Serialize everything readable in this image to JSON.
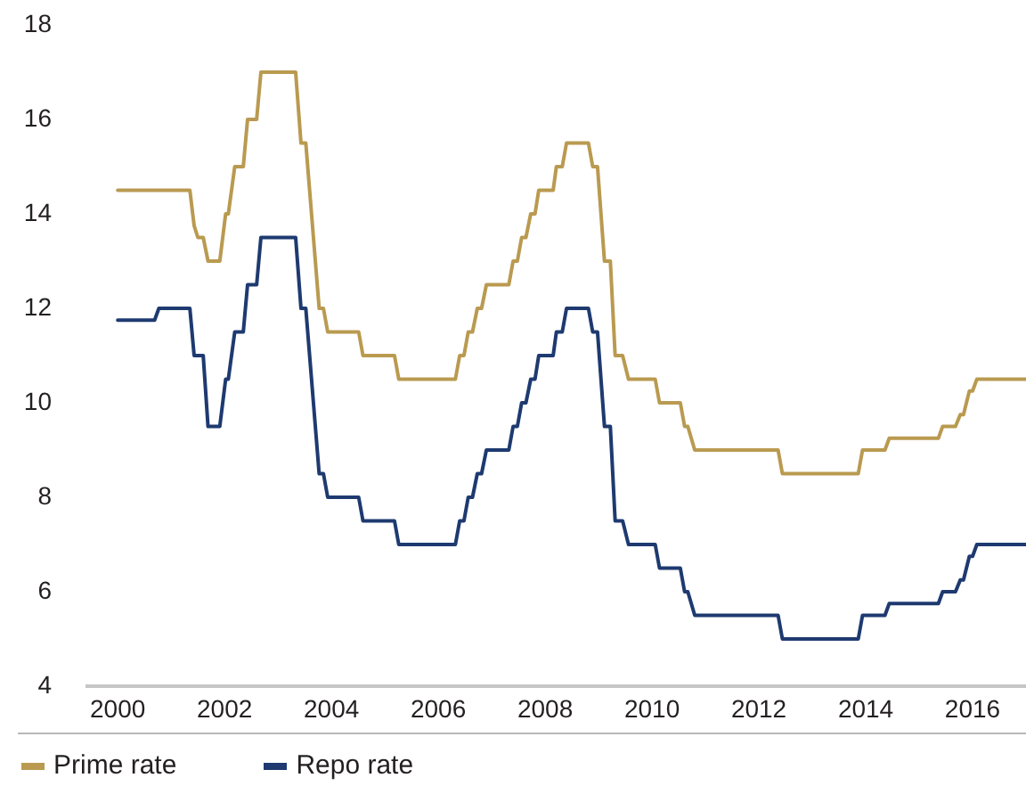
{
  "chart_data": {
    "type": "line",
    "xlim": [
      1999.43,
      2017
    ],
    "xticks": [
      2000,
      2002,
      2004,
      2006,
      2008,
      2010,
      2012,
      2014,
      2016
    ],
    "ylim": [
      4,
      18
    ],
    "yticks": [
      4,
      6,
      8,
      10,
      12,
      14,
      16,
      18
    ],
    "legend": "bottom left",
    "line_style": "solid",
    "series": [
      {
        "name": "Prime rate",
        "color": "#b99a50",
        "x": [
          2000,
          2001.35,
          2001.43,
          2001.5,
          2001.6,
          2001.69,
          2001.91,
          2002.02,
          2002.07,
          2002.19,
          2002.35,
          2002.43,
          2002.6,
          2002.68,
          2003.33,
          2003.43,
          2003.52,
          2003.77,
          2003.85,
          2003.93,
          2004.51,
          2004.59,
          2005.18,
          2005.26,
          2006.32,
          2006.4,
          2006.48,
          2006.56,
          2006.64,
          2006.73,
          2006.81,
          2006.9,
          2007.32,
          2007.4,
          2007.48,
          2007.56,
          2007.64,
          2007.73,
          2007.81,
          2007.88,
          2008.15,
          2008.21,
          2008.32,
          2008.4,
          2008.81,
          2008.89,
          2008.98,
          2009.11,
          2009.22,
          2009.31,
          2009.45,
          2009.56,
          2010.06,
          2010.14,
          2010.53,
          2010.61,
          2010.67,
          2010.8,
          2012.36,
          2012.44,
          2013.86,
          2013.94,
          2014.36,
          2014.44,
          2015.36,
          2015.44,
          2015.68,
          2015.77,
          2015.83,
          2015.94,
          2016,
          2016.08,
          2017
        ],
        "values": [
          14.5,
          14.5,
          13.75,
          13.5,
          13.5,
          13,
          13,
          14,
          14,
          15,
          15,
          16,
          16,
          17,
          17,
          15.5,
          15.5,
          12,
          12,
          11.5,
          11.5,
          11,
          11,
          10.5,
          10.5,
          11,
          11,
          11.5,
          11.5,
          12,
          12,
          12.5,
          12.5,
          13,
          13,
          13.5,
          13.5,
          14,
          14,
          14.5,
          14.5,
          15,
          15,
          15.5,
          15.5,
          15,
          15,
          13,
          13,
          11,
          11,
          10.5,
          10.5,
          10,
          10,
          9.5,
          9.5,
          9,
          9,
          8.5,
          8.5,
          9,
          9,
          9.25,
          9.25,
          9.5,
          9.5,
          9.75,
          9.75,
          10.25,
          10.25,
          10.5,
          10.5
        ]
      },
      {
        "name": "Repo rate",
        "color": "#1e3a70",
        "x": [
          2000,
          2000.69,
          2000.77,
          2001.35,
          2001.43,
          2001.6,
          2001.69,
          2001.91,
          2002.02,
          2002.07,
          2002.19,
          2002.35,
          2002.43,
          2002.6,
          2002.68,
          2003.33,
          2003.43,
          2003.52,
          2003.77,
          2003.85,
          2003.93,
          2004.51,
          2004.59,
          2005.18,
          2005.26,
          2006.32,
          2006.4,
          2006.48,
          2006.56,
          2006.64,
          2006.73,
          2006.81,
          2006.9,
          2007.32,
          2007.4,
          2007.48,
          2007.56,
          2007.64,
          2007.73,
          2007.81,
          2007.88,
          2008.15,
          2008.21,
          2008.32,
          2008.4,
          2008.81,
          2008.89,
          2008.98,
          2009.11,
          2009.22,
          2009.31,
          2009.45,
          2009.56,
          2010.06,
          2010.14,
          2010.53,
          2010.61,
          2010.67,
          2010.8,
          2012.36,
          2012.44,
          2013.86,
          2013.94,
          2014.36,
          2014.44,
          2015.36,
          2015.44,
          2015.68,
          2015.77,
          2015.83,
          2015.94,
          2016,
          2016.08,
          2017
        ],
        "values": [
          11.75,
          11.75,
          12,
          12,
          11,
          11,
          9.5,
          9.5,
          10.5,
          10.5,
          11.5,
          11.5,
          12.5,
          12.5,
          13.5,
          13.5,
          12,
          12,
          8.5,
          8.5,
          8,
          8,
          7.5,
          7.5,
          7,
          7,
          7.5,
          7.5,
          8,
          8,
          8.5,
          8.5,
          9,
          9,
          9.5,
          9.5,
          10,
          10,
          10.5,
          10.5,
          11,
          11,
          11.5,
          11.5,
          12,
          12,
          11.5,
          11.5,
          9.5,
          9.5,
          7.5,
          7.5,
          7,
          7,
          6.5,
          6.5,
          6,
          6,
          5.5,
          5.5,
          5,
          5,
          5.5,
          5.5,
          5.75,
          5.75,
          6,
          6,
          6.25,
          6.25,
          6.75,
          6.75,
          7,
          7
        ]
      }
    ]
  }
}
